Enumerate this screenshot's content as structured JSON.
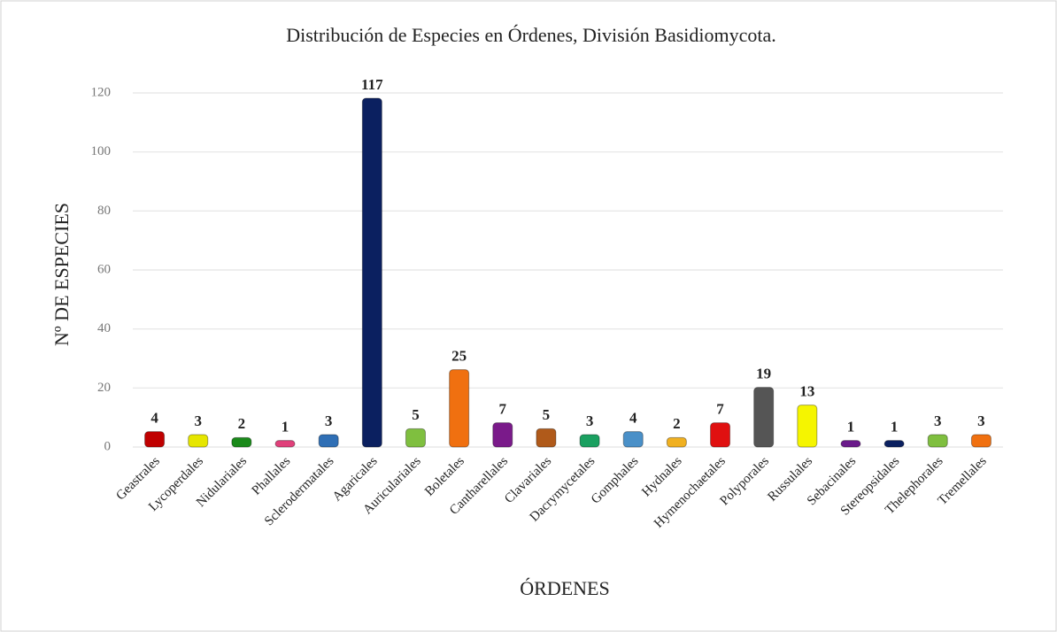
{
  "chart_data": {
    "type": "bar",
    "title": "Distribución de Especies en Órdenes, División Basidiomycota.",
    "x_label": "ÓRDENES",
    "y_label": "Nº DE ESPECIES",
    "categories": [
      "Geastrales",
      "Lycoperdales",
      "Nidulariales",
      "Phallales",
      "Sclerodermatales",
      "Agaricales",
      "Auriculariales",
      "Boletales",
      "Cantharellales",
      "Clavariales",
      "Dacrymycetales",
      "Gomphales",
      "Hydnales",
      "Hymenochaetales",
      "Polyporales",
      "Russulales",
      "Sebacinales",
      "Stereopsidales",
      "Thelephorales",
      "Tremellales"
    ],
    "values": [
      4,
      3,
      2,
      1,
      3,
      117,
      5,
      25,
      7,
      5,
      3,
      4,
      2,
      7,
      19,
      13,
      1,
      1,
      3,
      3
    ],
    "colors": [
      "#c00000",
      "#e6e600",
      "#1a8a1a",
      "#e0407a",
      "#2f6fb5",
      "#0b2060",
      "#7fbf3f",
      "#f07010",
      "#7a1a8a",
      "#b05a1a",
      "#1aa060",
      "#4a90c8",
      "#f0b020",
      "#e01010",
      "#555555",
      "#f5f500",
      "#6a1a8a",
      "#0b2060",
      "#7fbf3f",
      "#f07010"
    ],
    "ylim": [
      0,
      120
    ],
    "yticks": [
      0,
      20,
      40,
      60,
      80,
      100,
      120
    ],
    "grid": true
  }
}
